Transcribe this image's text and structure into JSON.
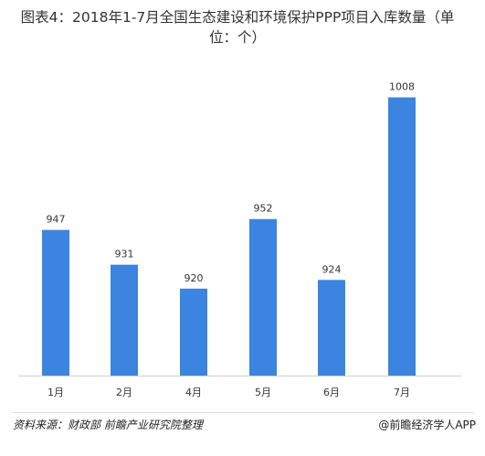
{
  "chart_data": {
    "type": "bar",
    "title": "图表4：2018年1-7月全国生态建设和环境保护PPP项目入库数量（单位：个）",
    "categories": [
      "1月",
      "2月",
      "4月",
      "5月",
      "6月",
      "7月"
    ],
    "values": [
      947,
      931,
      920,
      952,
      924,
      1008
    ],
    "ylim": [
      880,
      1012
    ],
    "grid": false,
    "bar_color": "#3b84e0"
  },
  "footer": {
    "source": "资料来源：财政部 前瞻产业研究院整理",
    "brand": "@前瞻经济学人APP"
  }
}
